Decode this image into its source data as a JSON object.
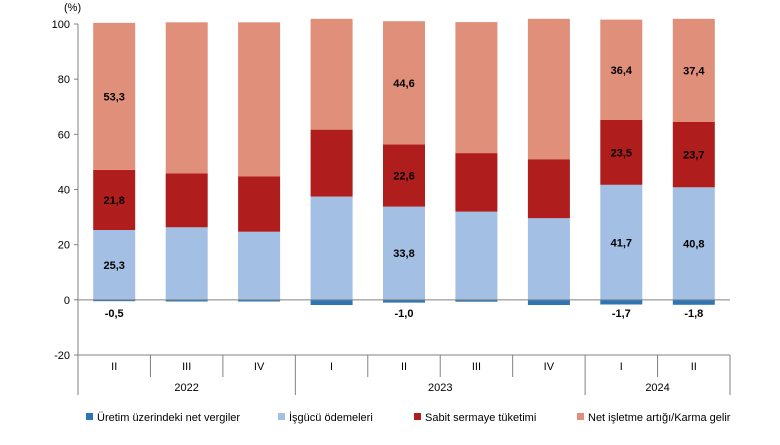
{
  "chart_data": {
    "type": "bar",
    "stacked": true,
    "unit_label": "(%)",
    "ylim": [
      -20,
      100
    ],
    "yticks": [
      -20,
      0,
      20,
      40,
      60,
      80,
      100
    ],
    "grid": false,
    "legend_position": "bottom",
    "categories": [
      "II",
      "III",
      "IV",
      "I",
      "II",
      "III",
      "IV",
      "I",
      "II"
    ],
    "year_groups": [
      {
        "label": "2022",
        "count": 3
      },
      {
        "label": "2023",
        "count": 4
      },
      {
        "label": "2024",
        "count": 2
      }
    ],
    "series": [
      {
        "name": "Üretim üzerindeki net vergiler",
        "color": "#2e75b6",
        "values": [
          -0.5,
          -0.6,
          -0.6,
          -1.9,
          -1.0,
          -0.7,
          -1.9,
          -1.7,
          -1.8
        ],
        "labels": [
          "-0,5",
          "",
          "",
          "",
          "-1,0",
          "",
          "",
          "-1,7",
          "-1,8"
        ]
      },
      {
        "name": "İşgücü ödemeleri",
        "color": "#a3bfe4",
        "values": [
          25.3,
          26.3,
          24.7,
          37.4,
          33.8,
          32.0,
          29.6,
          41.7,
          40.8
        ],
        "labels": [
          "25,3",
          "",
          "",
          "",
          "33,8",
          "",
          "",
          "41,7",
          "40,8"
        ]
      },
      {
        "name": "Sabit sermaye tüketimi",
        "color": "#b01d1d",
        "values": [
          21.8,
          19.5,
          20.0,
          24.3,
          22.6,
          21.2,
          21.4,
          23.5,
          23.7
        ],
        "labels": [
          "21,8",
          "",
          "",
          "",
          "22,6",
          "",
          "",
          "23,5",
          "23,7"
        ]
      },
      {
        "name": "Net işletme artığı/Karma gelir",
        "color": "#e0907a",
        "values": [
          53.3,
          54.8,
          55.9,
          40.2,
          44.6,
          47.5,
          50.9,
          36.4,
          37.4
        ],
        "labels": [
          "53,3",
          "",
          "",
          "",
          "44,6",
          "",
          "",
          "36,4",
          "37,4"
        ]
      }
    ]
  }
}
